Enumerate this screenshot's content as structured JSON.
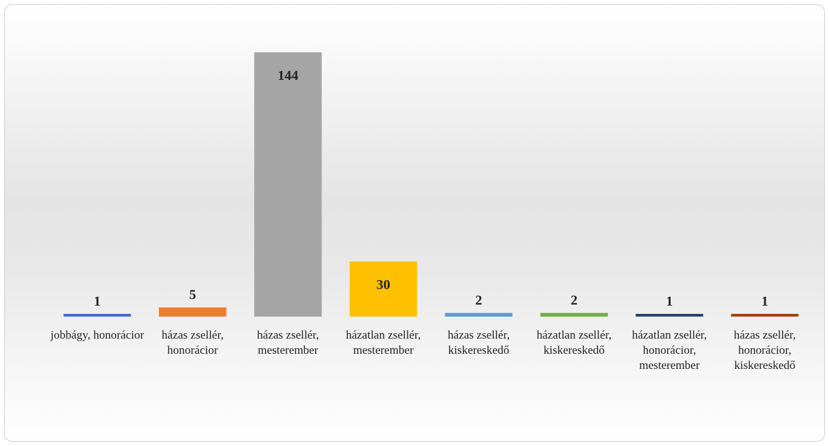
{
  "chart_data": {
    "type": "bar",
    "categories": [
      "jobbágy, honorácior",
      "házas zsellér, honorácior",
      "házas zsellér, mesterember",
      "házatlan zsellér, mesterember",
      "házas zsellér, kiskereskedő",
      "házatlan zsellér, kiskereskedő",
      "házatlan zsellér, honorácior, mesterember",
      "házas zsellér, honorácior, kiskereskedő"
    ],
    "values": [
      1,
      5,
      144,
      30,
      2,
      2,
      1,
      1
    ],
    "colors": [
      "#4472c4",
      "#ed7d31",
      "#a5a5a5",
      "#ffc000",
      "#5b9bd5",
      "#70ad47",
      "#264478",
      "#9e480e"
    ]
  }
}
